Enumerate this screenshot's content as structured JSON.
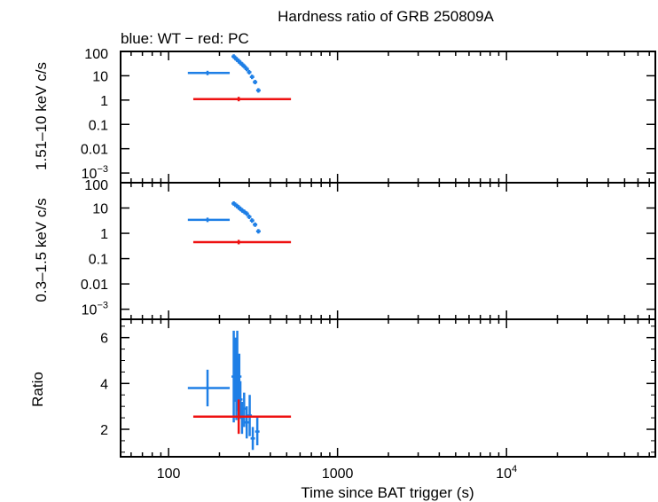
{
  "chart_data": {
    "type": "scatter",
    "title": "Hardness ratio of GRB 250809A",
    "subtitle": "blue: WT − red: PC",
    "xlabel": "Time since BAT trigger (s)",
    "x_scale": "log",
    "xlim": [
      52,
      76000
    ],
    "x_ticks": [
      {
        "value": 100,
        "label": "100"
      },
      {
        "value": 1000,
        "label": "1000"
      },
      {
        "value": 10000,
        "label": "10",
        "sup": "4"
      }
    ],
    "colors": {
      "WT": "#1e7fe6",
      "PC": "#ee1111"
    },
    "panels": [
      {
        "id": "hard",
        "ylabel": "1.51–10 keV c/s",
        "y_scale": "log",
        "ylim": [
          0.0004,
          100
        ],
        "y_ticks": [
          {
            "value": 100,
            "label": "100"
          },
          {
            "value": 10,
            "label": "10"
          },
          {
            "value": 1,
            "label": "1"
          },
          {
            "value": 0.1,
            "label": "0.1"
          },
          {
            "value": 0.01,
            "label": "0.01"
          },
          {
            "value": 0.001,
            "label": "10",
            "sup": "−3"
          }
        ],
        "series": [
          {
            "mode": "WT",
            "points": [
              {
                "x": 170,
                "xlo": 130,
                "xhi": 230,
                "y": 13
              },
              {
                "x": 243,
                "y": 62
              },
              {
                "x": 248,
                "y": 54
              },
              {
                "x": 254,
                "y": 46
              },
              {
                "x": 260,
                "y": 40
              },
              {
                "x": 266,
                "y": 34
              },
              {
                "x": 273,
                "y": 29
              },
              {
                "x": 281,
                "y": 24
              },
              {
                "x": 290,
                "y": 19
              },
              {
                "x": 300,
                "y": 14
              },
              {
                "x": 312,
                "y": 9
              },
              {
                "x": 325,
                "y": 5.5
              },
              {
                "x": 340,
                "y": 2.5
              }
            ]
          },
          {
            "mode": "PC",
            "points": [
              {
                "x": 260,
                "xlo": 140,
                "xhi": 530,
                "y": 1.1
              }
            ]
          }
        ]
      },
      {
        "id": "soft",
        "ylabel": "0.3–1.5 keV c/s",
        "y_scale": "log",
        "ylim": [
          0.0004,
          100
        ],
        "y_ticks": [
          {
            "value": 100,
            "label": "100"
          },
          {
            "value": 10,
            "label": "10"
          },
          {
            "value": 1,
            "label": "1"
          },
          {
            "value": 0.1,
            "label": "0.1"
          },
          {
            "value": 0.01,
            "label": "0.01"
          },
          {
            "value": 0.001,
            "label": "10",
            "sup": "−3"
          }
        ],
        "series": [
          {
            "mode": "WT",
            "points": [
              {
                "x": 170,
                "xlo": 130,
                "xhi": 230,
                "y": 3.4
              },
              {
                "x": 243,
                "y": 15
              },
              {
                "x": 248,
                "y": 13.5
              },
              {
                "x": 254,
                "y": 12
              },
              {
                "x": 260,
                "y": 10.5
              },
              {
                "x": 266,
                "y": 9.2
              },
              {
                "x": 273,
                "y": 8
              },
              {
                "x": 281,
                "y": 7
              },
              {
                "x": 290,
                "y": 6
              },
              {
                "x": 300,
                "y": 4.5
              },
              {
                "x": 312,
                "y": 3.2
              },
              {
                "x": 325,
                "y": 2.2
              },
              {
                "x": 340,
                "y": 1.2
              }
            ]
          },
          {
            "mode": "PC",
            "points": [
              {
                "x": 260,
                "xlo": 140,
                "xhi": 530,
                "y": 0.45
              }
            ]
          }
        ]
      },
      {
        "id": "ratio",
        "ylabel": "Ratio",
        "y_scale": "linear",
        "ylim": [
          0.8,
          6.8
        ],
        "y_ticks": [
          {
            "value": 2,
            "label": "2"
          },
          {
            "value": 4,
            "label": "4"
          },
          {
            "value": 6,
            "label": "6"
          }
        ],
        "series": [
          {
            "mode": "WT",
            "points": [
              {
                "x": 170,
                "xlo": 130,
                "xhi": 230,
                "y": 3.8,
                "ylo": 3.0,
                "yhi": 4.6
              },
              {
                "x": 243,
                "y": 4.3,
                "ylo": 2.3,
                "yhi": 6.3
              },
              {
                "x": 248,
                "y": 4.6,
                "ylo": 3.2,
                "yhi": 6.0
              },
              {
                "x": 252,
                "y": 4.1,
                "ylo": 2.4,
                "yhi": 5.6
              },
              {
                "x": 255,
                "y": 4.8,
                "ylo": 3.3,
                "yhi": 6.3
              },
              {
                "x": 258,
                "y": 4.0,
                "ylo": 2.8,
                "yhi": 5.1
              },
              {
                "x": 262,
                "y": 4.3,
                "ylo": 3.3,
                "yhi": 5.3
              },
              {
                "x": 266,
                "y": 3.3,
                "ylo": 2.5,
                "yhi": 4.1
              },
              {
                "x": 272,
                "y": 2.5,
                "ylo": 1.8,
                "yhi": 3.2
              },
              {
                "x": 280,
                "y": 2.9,
                "ylo": 2.1,
                "yhi": 3.6
              },
              {
                "x": 290,
                "y": 2.3,
                "ylo": 1.6,
                "yhi": 3.0
              },
              {
                "x": 302,
                "y": 2.6,
                "ylo": 1.7,
                "yhi": 3.5
              },
              {
                "x": 315,
                "y": 1.6,
                "ylo": 1.1,
                "yhi": 2.1
              },
              {
                "x": 335,
                "y": 1.9,
                "ylo": 1.3,
                "yhi": 2.5
              }
            ]
          },
          {
            "mode": "PC",
            "points": [
              {
                "x": 260,
                "xlo": 140,
                "xhi": 530,
                "y": 2.55,
                "ylo": 1.8,
                "yhi": 3.3
              }
            ]
          }
        ]
      }
    ]
  }
}
